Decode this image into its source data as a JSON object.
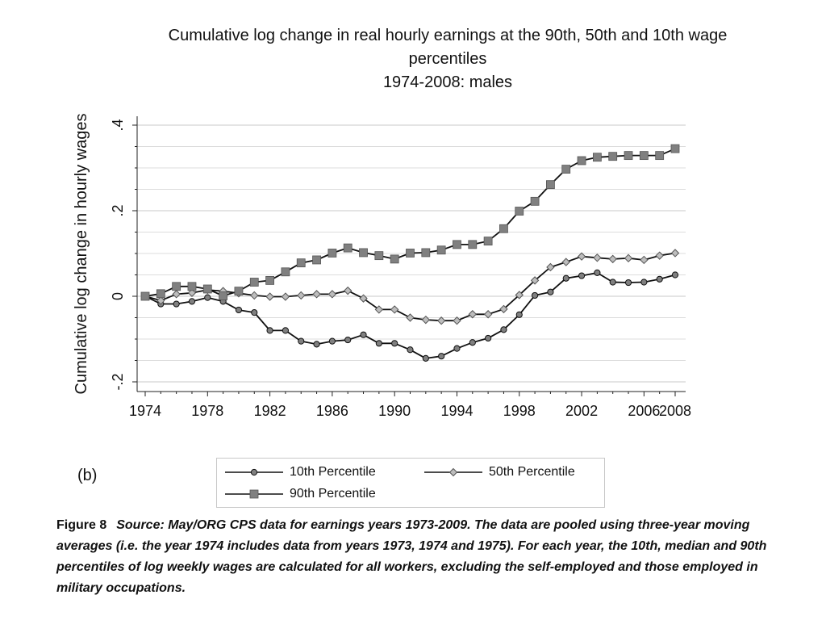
{
  "chart_data": {
    "type": "line",
    "title": "Cumulative log change in real hourly earnings at the 90th, 50th and 10th wage percentiles",
    "subtitle": "1974-2008: males",
    "xlabel": "",
    "ylabel": "Cumulative log change in hourly wages",
    "xlim": [
      1974,
      2008
    ],
    "ylim": [
      -0.2,
      0.4
    ],
    "x_ticks": [
      1974,
      1978,
      1982,
      1986,
      1990,
      1994,
      1998,
      2002,
      2006,
      2008
    ],
    "x_tick_labels": [
      "1974",
      "1978",
      "1982",
      "1986",
      "1990",
      "1994",
      "1998",
      "2002",
      "2006",
      "2008"
    ],
    "y_ticks": [
      -0.2,
      0,
      0.2,
      0.4
    ],
    "y_tick_labels": [
      "-.2",
      "0",
      ".2",
      ".4"
    ],
    "grid": true,
    "legend_position": "bottom",
    "x": [
      1974,
      1975,
      1976,
      1977,
      1978,
      1979,
      1980,
      1981,
      1982,
      1983,
      1984,
      1985,
      1986,
      1987,
      1988,
      1989,
      1990,
      1991,
      1992,
      1993,
      1994,
      1995,
      1996,
      1997,
      1998,
      1999,
      2000,
      2001,
      2002,
      2003,
      2004,
      2005,
      2006,
      2007,
      2008
    ],
    "series": [
      {
        "name": "10th Percentile",
        "marker": "circle",
        "color": "#111111",
        "marker_color": "#808080",
        "values": [
          0.0,
          -0.018,
          -0.018,
          -0.012,
          -0.003,
          -0.012,
          -0.032,
          -0.038,
          -0.08,
          -0.08,
          -0.105,
          -0.112,
          -0.105,
          -0.102,
          -0.09,
          -0.11,
          -0.11,
          -0.125,
          -0.145,
          -0.14,
          -0.122,
          -0.108,
          -0.098,
          -0.078,
          -0.043,
          0.002,
          0.01,
          0.042,
          0.048,
          0.055,
          0.033,
          0.032,
          0.033,
          0.04,
          0.05
        ]
      },
      {
        "name": "50th Percentile",
        "marker": "diamond",
        "color": "#111111",
        "marker_color": "#bdbdbd",
        "values": [
          0.0,
          -0.01,
          0.005,
          0.008,
          0.015,
          0.012,
          0.007,
          0.002,
          -0.001,
          -0.001,
          0.002,
          0.005,
          0.005,
          0.013,
          -0.005,
          -0.031,
          -0.031,
          -0.05,
          -0.055,
          -0.057,
          -0.057,
          -0.042,
          -0.042,
          -0.03,
          0.003,
          0.037,
          0.068,
          0.08,
          0.093,
          0.09,
          0.087,
          0.089,
          0.085,
          0.095,
          0.101
        ]
      },
      {
        "name": "90th Percentile",
        "marker": "square",
        "color": "#111111",
        "marker_color": "#808080",
        "values": [
          0.0,
          0.006,
          0.023,
          0.023,
          0.017,
          0.001,
          0.012,
          0.033,
          0.037,
          0.057,
          0.078,
          0.085,
          0.101,
          0.113,
          0.102,
          0.095,
          0.087,
          0.101,
          0.102,
          0.108,
          0.121,
          0.121,
          0.129,
          0.158,
          0.199,
          0.222,
          0.261,
          0.297,
          0.317,
          0.325,
          0.327,
          0.329,
          0.329,
          0.329,
          0.345
        ]
      }
    ]
  },
  "panel_label": "(b)",
  "caption": {
    "figure_label": "Figure 8",
    "text": "Source: May/ORG CPS data for earnings years 1973-2009. The data are pooled using three-year moving averages (i.e. the year 1974 includes data from years 1973, 1974 and 1975). For each year, the 10th, median and 90th percentiles of log weekly wages are calculated for all workers, excluding the self-employed and those employed in military occupations."
  }
}
